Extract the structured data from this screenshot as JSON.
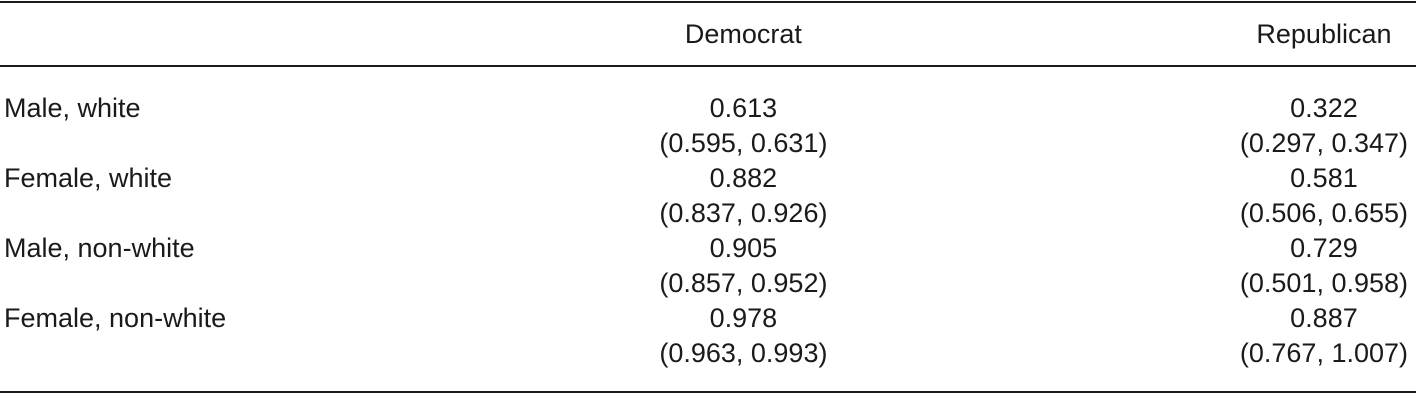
{
  "table": {
    "columns": [
      "",
      "Democrat",
      "Republican"
    ],
    "rows": [
      {
        "label": "Male, white",
        "democrat": {
          "estimate": "0.613",
          "ci": "(0.595, 0.631)"
        },
        "republican": {
          "estimate": "0.322",
          "ci": "(0.297, 0.347)"
        }
      },
      {
        "label": "Female, white",
        "democrat": {
          "estimate": "0.882",
          "ci": "(0.837, 0.926)"
        },
        "republican": {
          "estimate": "0.581",
          "ci": "(0.506, 0.655)"
        }
      },
      {
        "label": "Male, non-white",
        "democrat": {
          "estimate": "0.905",
          "ci": "(0.857, 0.952)"
        },
        "republican": {
          "estimate": "0.729",
          "ci": "(0.501, 0.958)"
        }
      },
      {
        "label": "Female, non-white",
        "democrat": {
          "estimate": "0.978",
          "ci": "(0.963, 0.993)"
        },
        "republican": {
          "estimate": "0.887",
          "ci": "(0.767, 1.007)"
        }
      }
    ]
  },
  "colors": {
    "text": "#1a1a1a",
    "rule": "#1a1a1a",
    "background": "#ffffff"
  }
}
